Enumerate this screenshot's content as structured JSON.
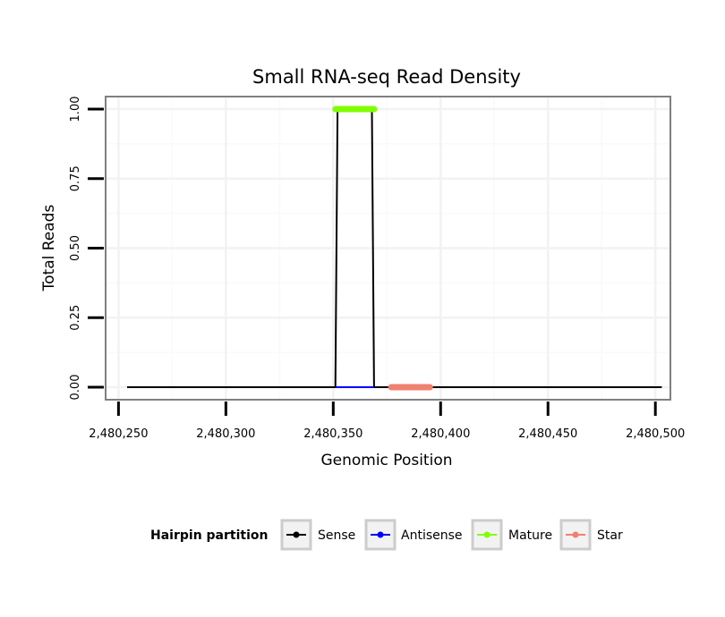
{
  "chart_data": {
    "type": "line",
    "title": "Small RNA-seq Read Density",
    "xlabel": "Genomic Position",
    "ylabel": "Total Reads",
    "xlim": [
      2480244,
      2480507
    ],
    "ylim": [
      -0.045,
      1.045
    ],
    "x_ticks": [
      2480250,
      2480300,
      2480350,
      2480400,
      2480450,
      2480500
    ],
    "x_tick_labels": [
      "2,480,250",
      "2,480,300",
      "2,480,350",
      "2,480,400",
      "2,480,450",
      "2,480,500"
    ],
    "y_ticks": [
      0,
      0.25,
      0.5,
      0.75,
      1.0
    ],
    "y_tick_labels": [
      "0.00",
      "0.25",
      "0.50",
      "0.75",
      "1.00"
    ],
    "grid": true,
    "legend": {
      "title": "Hairpin partition",
      "position": "bottom",
      "entries": [
        "Sense",
        "Antisense",
        "Mature",
        "Star"
      ]
    },
    "series": [
      {
        "name": "Sense",
        "color": "#000000",
        "kind": "line",
        "x": [
          2480254,
          2480351,
          2480352,
          2480368,
          2480369,
          2480503
        ],
        "y": [
          0,
          0,
          1,
          1,
          0,
          0
        ]
      },
      {
        "name": "Antisense",
        "color": "#0000ff",
        "kind": "line",
        "x": [
          2480351,
          2480369
        ],
        "y": [
          0,
          0
        ]
      },
      {
        "name": "Mature",
        "color": "#80ff00",
        "kind": "segment",
        "x": [
          2480351,
          2480369
        ],
        "y": [
          1,
          1
        ]
      },
      {
        "name": "Star",
        "color": "#f08070",
        "kind": "segment",
        "x": [
          2480377,
          2480395
        ],
        "y": [
          0,
          0
        ]
      }
    ]
  }
}
